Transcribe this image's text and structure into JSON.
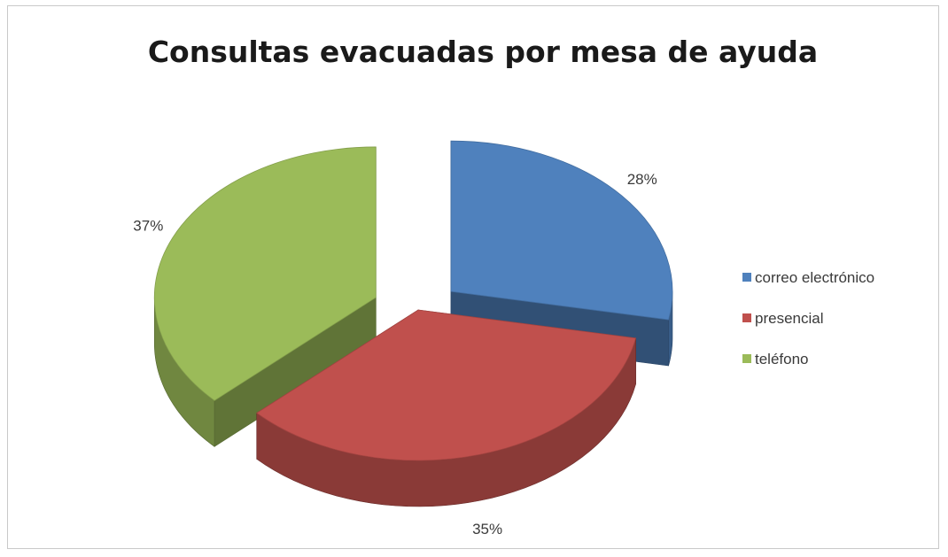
{
  "chart_data": {
    "type": "pie",
    "title": "Consultas evacuadas por mesa de ayuda",
    "categories": [
      "correo electrónico",
      "presencial",
      "teléfono"
    ],
    "values": [
      28,
      35,
      37
    ],
    "value_labels": [
      "28%",
      "35%",
      "37%"
    ],
    "legend_position": "right",
    "style": "3d-exploded"
  },
  "colors": {
    "correo electrónico": "#4f81bd",
    "presencial": "#c0504d",
    "teléfono": "#9bbb59"
  }
}
